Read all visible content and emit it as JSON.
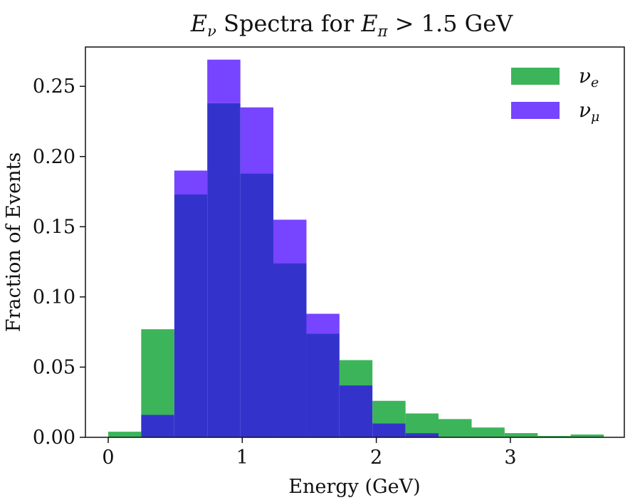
{
  "chart_data": {
    "type": "bar",
    "title": "E_ν Spectra for E_π > 1.5 GeV",
    "xlabel": "Energy (GeV)",
    "ylabel": "Fraction of Events",
    "xlim": [
      -0.17,
      3.85
    ],
    "ylim": [
      0,
      0.278
    ],
    "x_ticks": [
      0,
      1,
      2,
      3
    ],
    "x_tick_labels": [
      "0",
      "1",
      "2",
      "3"
    ],
    "y_ticks": [
      0.0,
      0.05,
      0.1,
      0.15,
      0.2,
      0.25
    ],
    "y_tick_labels": [
      "0.00",
      "0.05",
      "0.10",
      "0.15",
      "0.20",
      "0.25"
    ],
    "grid": false,
    "legend_position": "top-right",
    "bin_edges": [
      0.0,
      0.246,
      0.493,
      0.739,
      0.986,
      1.232,
      1.479,
      1.725,
      1.971,
      2.218,
      2.464,
      2.711,
      2.957,
      3.204,
      3.45,
      3.697
    ],
    "series": [
      {
        "name": "ν_e",
        "color": "#3cb45a",
        "values": [
          0.004,
          0.077,
          0.173,
          0.238,
          0.188,
          0.124,
          0.074,
          0.055,
          0.026,
          0.017,
          0.013,
          0.007,
          0.003,
          0.001,
          0.002
        ]
      },
      {
        "name": "ν_μ",
        "color": "#7744ff",
        "values": [
          0.0,
          0.016,
          0.19,
          0.269,
          0.235,
          0.155,
          0.088,
          0.037,
          0.01,
          0.003,
          0.0,
          0.0,
          0.0,
          0.0,
          0.0
        ]
      }
    ],
    "overlap_color": "#3333cc"
  }
}
